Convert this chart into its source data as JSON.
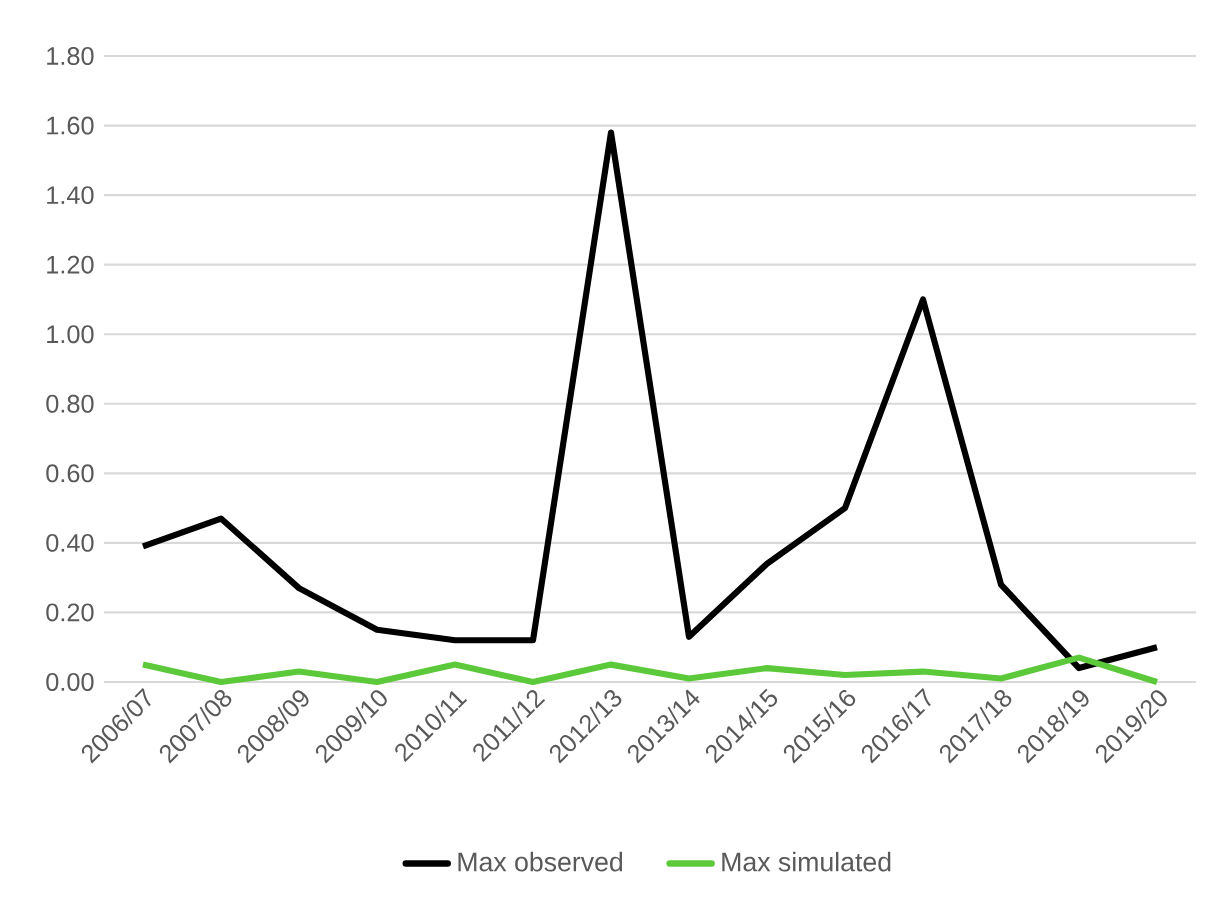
{
  "chart_data": {
    "type": "line",
    "categories": [
      "2006/07",
      "2007/08",
      "2008/09",
      "2009/10",
      "2010/11",
      "2011/12",
      "2012/13",
      "2013/14",
      "2014/15",
      "2015/16",
      "2016/17",
      "2017/18",
      "2018/19",
      "2019/20"
    ],
    "series": [
      {
        "name": "Max observed",
        "color": "#000000",
        "values": [
          0.39,
          0.47,
          0.27,
          0.15,
          0.12,
          0.12,
          1.58,
          0.13,
          0.34,
          0.5,
          1.1,
          0.28,
          0.04,
          0.1
        ]
      },
      {
        "name": "Max simulated",
        "color": "#5cc93b",
        "values": [
          0.05,
          0.0,
          0.03,
          0.0,
          0.05,
          0.0,
          0.05,
          0.01,
          0.04,
          0.02,
          0.03,
          0.01,
          0.07,
          0.0
        ]
      }
    ],
    "ylim": [
      0,
      1.8
    ],
    "yticks": [
      {
        "value": 0,
        "label": "0.00"
      },
      {
        "value": 0.2,
        "label": "0.20"
      },
      {
        "value": 0.4,
        "label": "0.40"
      },
      {
        "value": 0.6,
        "label": "0.60"
      },
      {
        "value": 0.8,
        "label": "0.80"
      },
      {
        "value": 1.0,
        "label": "1.00"
      },
      {
        "value": 1.2,
        "label": "1.20"
      },
      {
        "value": 1.4,
        "label": "1.40"
      },
      {
        "value": 1.6,
        "label": "1.60"
      },
      {
        "value": 1.8,
        "label": "1.80"
      }
    ],
    "grid": "y",
    "legend": "bottom"
  }
}
